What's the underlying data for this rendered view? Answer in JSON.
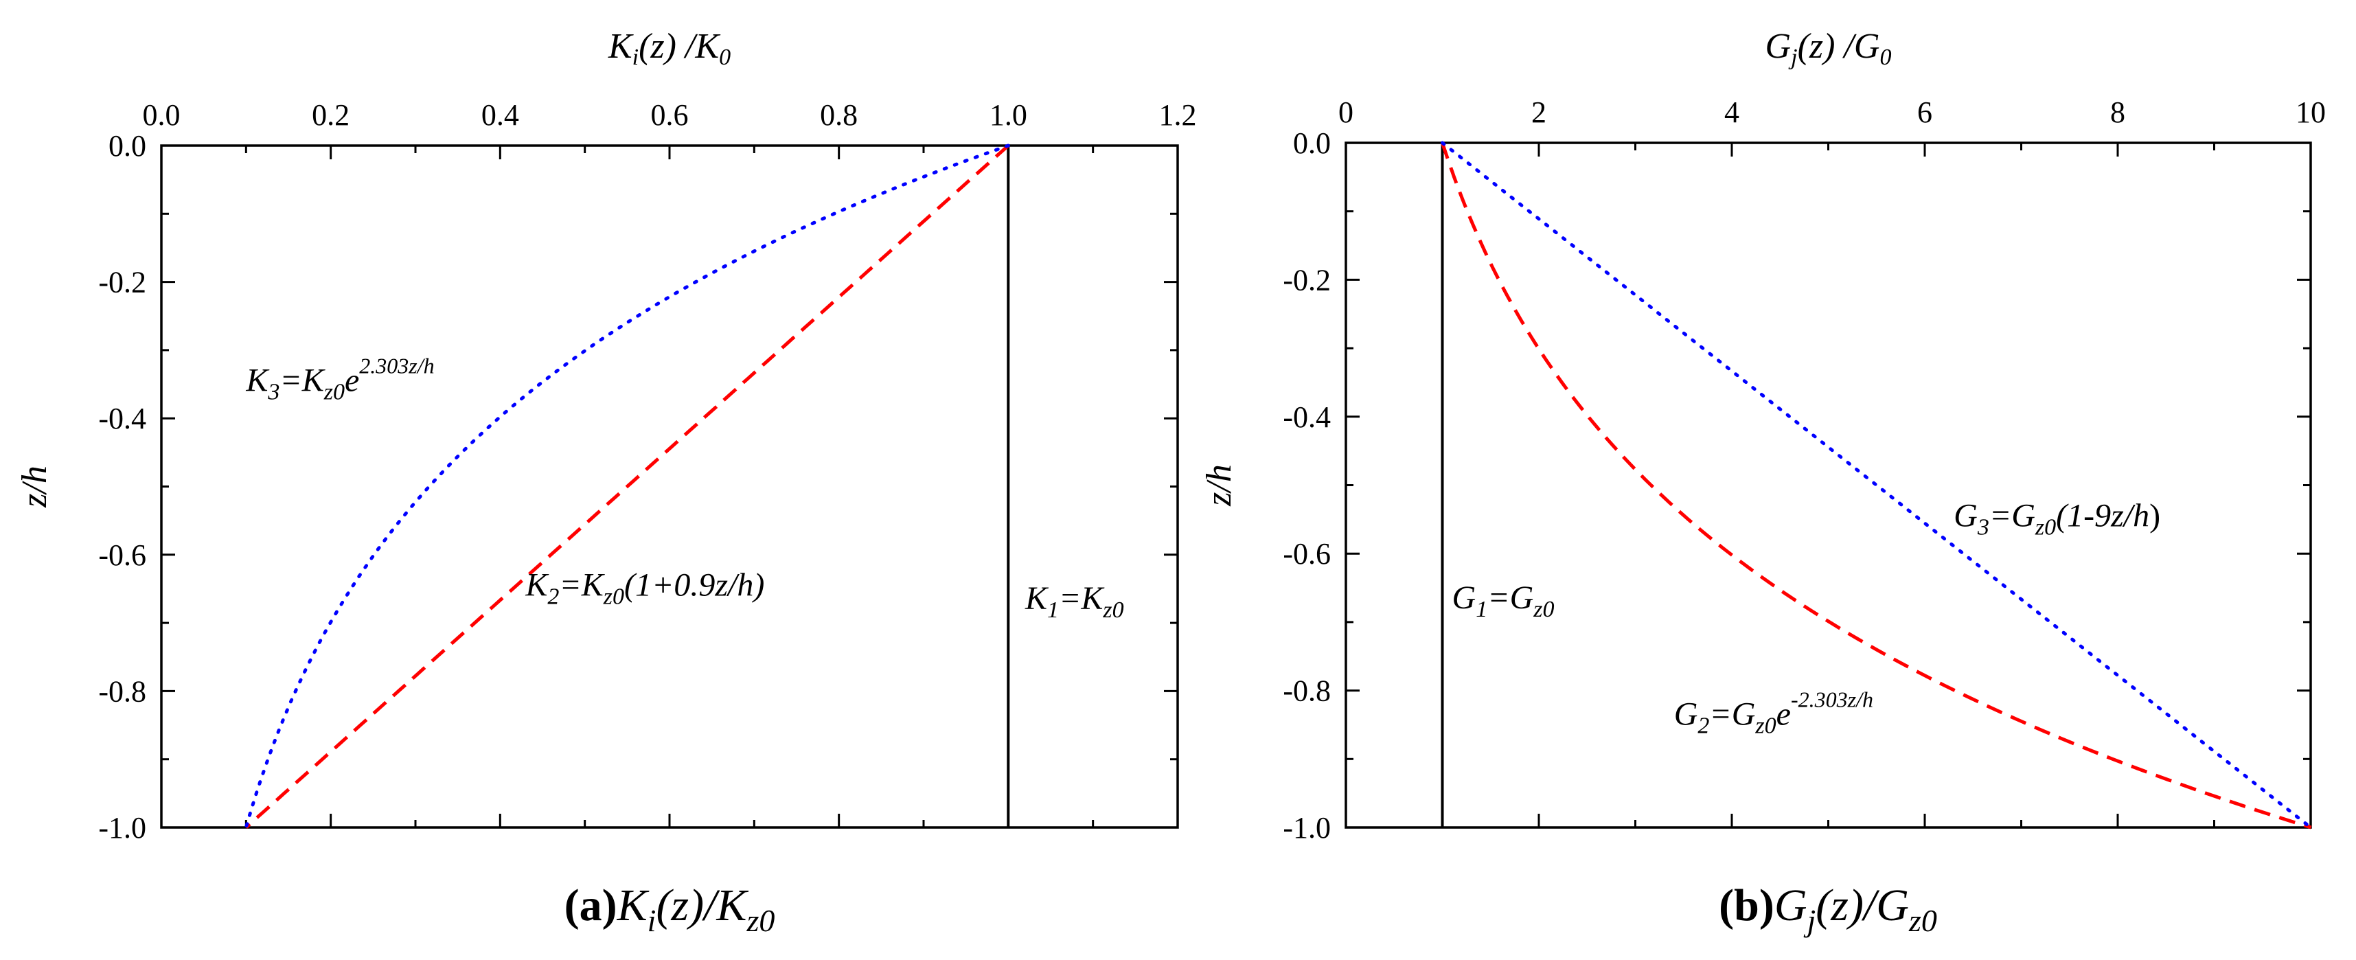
{
  "chart_data": [
    {
      "panel": "a",
      "type": "line",
      "xlabel": "K_i(z) /K_0",
      "ylabel": "z/h",
      "xlim": [
        0.0,
        1.2
      ],
      "ylim": [
        -1.0,
        0.0
      ],
      "x_axis_position": "top",
      "x_ticks": [
        "0.0",
        "0.2",
        "0.4",
        "0.6",
        "0.8",
        "1.0",
        "1.2"
      ],
      "y_ticks": [
        "0.0",
        "-0.2",
        "-0.4",
        "-0.6",
        "-0.8",
        "-1.0"
      ],
      "series": [
        {
          "name": "K1=Kz0",
          "color": "#000000",
          "style": "solid",
          "formula": "1",
          "x": [
            1.0,
            1.0
          ],
          "y": [
            0.0,
            -1.0
          ]
        },
        {
          "name": "K2=Kz0(1+0.9z/h)",
          "color": "#ff0000",
          "style": "dashed",
          "formula": "1+0.9z",
          "x": [
            1.0,
            0.82,
            0.64,
            0.46,
            0.28,
            0.1
          ],
          "y": [
            0.0,
            -0.2,
            -0.4,
            -0.6,
            -0.8,
            -1.0
          ]
        },
        {
          "name": "K3=Kz0e^(2.303z/h)",
          "color": "#0000ff",
          "style": "dotted",
          "formula": "exp(2.303z)",
          "x": [
            1.0,
            0.631,
            0.398,
            0.251,
            0.158,
            0.1
          ],
          "y": [
            0.0,
            -0.2,
            -0.4,
            -0.6,
            -0.8,
            -1.0
          ]
        }
      ],
      "annotations": [
        {
          "base": "K",
          "sub": "3",
          "mid": "=K",
          "sub2": "z0",
          "tail": "e",
          "sup": "2.303z/h",
          "at": [
            0.1,
            -0.36
          ]
        },
        {
          "base": "K",
          "sub": "2",
          "mid": "=K",
          "sub2": "z0",
          "tail": "(1+0.9z/h)",
          "sup": "",
          "at": [
            0.43,
            -0.66
          ]
        },
        {
          "base": "K",
          "sub": "1",
          "mid": "=K",
          "sub2": "z0",
          "tail": "",
          "sup": "",
          "at": [
            1.02,
            -0.68
          ]
        }
      ],
      "caption": {
        "label": "(a)",
        "base": "K",
        "sub": "i",
        "mid": "(z)/K",
        "sub2": "z0"
      }
    },
    {
      "panel": "b",
      "type": "line",
      "xlabel": "G_j(z) /G_0",
      "ylabel": "z/h",
      "xlim": [
        0,
        10
      ],
      "ylim": [
        -1.0,
        0.0
      ],
      "x_axis_position": "top",
      "x_ticks": [
        "0",
        "2",
        "4",
        "6",
        "8",
        "10"
      ],
      "y_ticks": [
        "0.0",
        "-0.2",
        "-0.4",
        "-0.6",
        "-0.8",
        "-1.0"
      ],
      "series": [
        {
          "name": "G1=Gz0",
          "color": "#000000",
          "style": "solid",
          "formula": "1",
          "x": [
            1,
            1
          ],
          "y": [
            0.0,
            -1.0
          ]
        },
        {
          "name": "G2=Gz0e^(-2.303z/h)",
          "color": "#ff0000",
          "style": "dashed",
          "formula": "exp(-2.303z)",
          "x": [
            1.0,
            1.585,
            2.512,
            3.981,
            6.31,
            10.0
          ],
          "y": [
            0.0,
            -0.2,
            -0.4,
            -0.6,
            -0.8,
            -1.0
          ]
        },
        {
          "name": "G3=Gz0(1-9z/h)",
          "color": "#0000ff",
          "style": "dotted",
          "formula": "1-9z",
          "x": [
            1.0,
            2.8,
            4.6,
            6.4,
            8.2,
            10.0
          ],
          "y": [
            0.0,
            -0.2,
            -0.4,
            -0.6,
            -0.8,
            -1.0
          ]
        }
      ],
      "annotations": [
        {
          "base": "G",
          "sub": "3",
          "mid": "=G",
          "sub2": "z0",
          "tail": "(1-9",
          "tail2": "z/h",
          "tail3": ")",
          "sup": "",
          "at": [
            6.3,
            -0.56
          ]
        },
        {
          "base": "G",
          "sub": "1",
          "mid": "=G",
          "sub2": "z0",
          "tail": "",
          "sup": "",
          "at": [
            1.1,
            -0.68
          ]
        },
        {
          "base": "G",
          "sub": "2",
          "mid": "=G",
          "sub2": "z0",
          "tail": "e",
          "sup": "-2.303z/h",
          "at": [
            3.4,
            -0.85
          ]
        }
      ],
      "caption": {
        "label": "(b)",
        "base": "G",
        "sub": "j",
        "mid": "(z)/G",
        "sub2": "z0"
      }
    }
  ]
}
